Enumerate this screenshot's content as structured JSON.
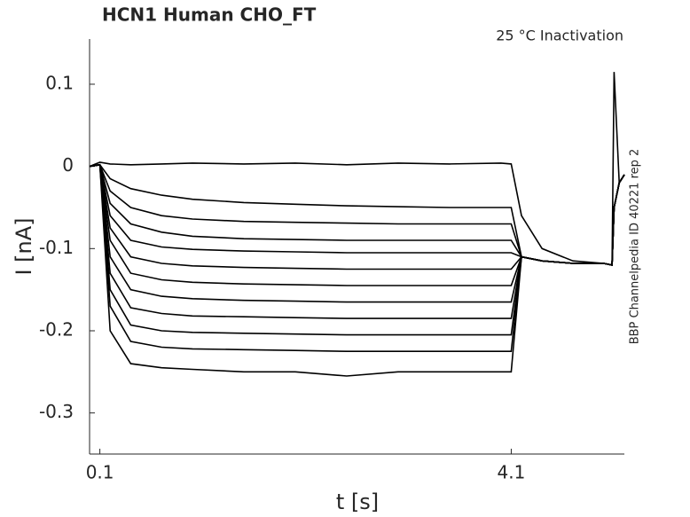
{
  "chart_data": {
    "type": "line",
    "title": "HCN1  Human  CHO_FT",
    "annotation": "25 °C  Inactivation",
    "side_label": "BBP Channelpedia ID 40221 rep 2",
    "x_label": "t [s]",
    "y_label": "I [nA]",
    "xlim": [
      0,
      5.2
    ],
    "ylim": [
      -0.35,
      0.155
    ],
    "xticks": [
      0.1,
      4.1
    ],
    "yticks": [
      0.1,
      0,
      -0.1,
      -0.2,
      -0.3
    ],
    "x": [
      0,
      0.1,
      0.2,
      0.4,
      0.7,
      1.0,
      1.5,
      2.0,
      2.5,
      3.0,
      3.5,
      4.0,
      4.1,
      4.2,
      4.4,
      4.7,
      5.0,
      5.08,
      5.1,
      5.15,
      5.2
    ],
    "series": [
      {
        "color": "#000000",
        "values": [
          0,
          0.005,
          0.003,
          0.002,
          0.003,
          0.004,
          0.003,
          0.004,
          0.002,
          0.004,
          0.003,
          0.004,
          0.003,
          -0.06,
          -0.1,
          -0.115,
          -0.118,
          -0.12,
          0.115,
          -0.02,
          -0.01
        ]
      },
      {
        "color": "#000000",
        "values": [
          0,
          0.002,
          -0.015,
          -0.027,
          -0.035,
          -0.04,
          -0.044,
          -0.046,
          -0.048,
          -0.049,
          -0.05,
          -0.05,
          -0.05,
          -0.11,
          -0.115,
          -0.118,
          -0.118,
          -0.12,
          -0.05,
          -0.02,
          -0.01
        ]
      },
      {
        "color": "#000000",
        "values": [
          0,
          0.002,
          -0.03,
          -0.05,
          -0.06,
          -0.064,
          -0.067,
          -0.068,
          -0.069,
          -0.07,
          -0.07,
          -0.07,
          -0.07,
          -0.11,
          -0.115,
          -0.118,
          -0.118,
          -0.12,
          -0.05,
          -0.02,
          -0.01
        ]
      },
      {
        "color": "#000000",
        "values": [
          0,
          0.002,
          -0.045,
          -0.07,
          -0.08,
          -0.085,
          -0.088,
          -0.089,
          -0.09,
          -0.09,
          -0.09,
          -0.09,
          -0.09,
          -0.11,
          -0.115,
          -0.118,
          -0.118,
          -0.12,
          -0.05,
          -0.02,
          -0.01
        ]
      },
      {
        "color": "#000000",
        "values": [
          0,
          0.002,
          -0.06,
          -0.09,
          -0.098,
          -0.101,
          -0.103,
          -0.104,
          -0.105,
          -0.105,
          -0.105,
          -0.105,
          -0.105,
          -0.11,
          -0.115,
          -0.118,
          -0.118,
          -0.12,
          -0.05,
          -0.02,
          -0.01
        ]
      },
      {
        "color": "#000000",
        "values": [
          0,
          0.002,
          -0.075,
          -0.11,
          -0.118,
          -0.121,
          -0.123,
          -0.124,
          -0.125,
          -0.125,
          -0.125,
          -0.125,
          -0.125,
          -0.11,
          -0.115,
          -0.118,
          -0.118,
          -0.12,
          -0.05,
          -0.02,
          -0.01
        ]
      },
      {
        "color": "#000000",
        "values": [
          0,
          0.002,
          -0.09,
          -0.13,
          -0.138,
          -0.141,
          -0.143,
          -0.144,
          -0.145,
          -0.145,
          -0.145,
          -0.145,
          -0.145,
          -0.11,
          -0.115,
          -0.118,
          -0.118,
          -0.12,
          -0.05,
          -0.02,
          -0.01
        ]
      },
      {
        "color": "#000000",
        "values": [
          0,
          0.002,
          -0.11,
          -0.15,
          -0.158,
          -0.161,
          -0.163,
          -0.164,
          -0.165,
          -0.165,
          -0.165,
          -0.165,
          -0.165,
          -0.11,
          -0.115,
          -0.118,
          -0.118,
          -0.12,
          -0.05,
          -0.02,
          -0.01
        ]
      },
      {
        "color": "#000000",
        "values": [
          0,
          0.002,
          -0.13,
          -0.172,
          -0.179,
          -0.182,
          -0.183,
          -0.184,
          -0.185,
          -0.185,
          -0.185,
          -0.185,
          -0.185,
          -0.11,
          -0.115,
          -0.118,
          -0.118,
          -0.12,
          -0.05,
          -0.02,
          -0.01
        ]
      },
      {
        "color": "#000000",
        "values": [
          0,
          0.002,
          -0.15,
          -0.193,
          -0.2,
          -0.202,
          -0.203,
          -0.204,
          -0.205,
          -0.205,
          -0.205,
          -0.205,
          -0.205,
          -0.11,
          -0.115,
          -0.118,
          -0.118,
          -0.12,
          -0.05,
          -0.02,
          -0.01
        ]
      },
      {
        "color": "#000000",
        "values": [
          0,
          0.002,
          -0.17,
          -0.213,
          -0.22,
          -0.222,
          -0.223,
          -0.224,
          -0.225,
          -0.225,
          -0.225,
          -0.225,
          -0.225,
          -0.11,
          -0.115,
          -0.118,
          -0.118,
          -0.12,
          -0.05,
          -0.02,
          -0.01
        ]
      },
      {
        "color": "#000000",
        "values": [
          0,
          0.002,
          -0.2,
          -0.24,
          -0.245,
          -0.247,
          -0.25,
          -0.25,
          -0.255,
          -0.25,
          -0.25,
          -0.25,
          -0.25,
          -0.11,
          -0.115,
          -0.118,
          -0.118,
          -0.12,
          -0.05,
          -0.02,
          -0.01
        ]
      }
    ]
  }
}
